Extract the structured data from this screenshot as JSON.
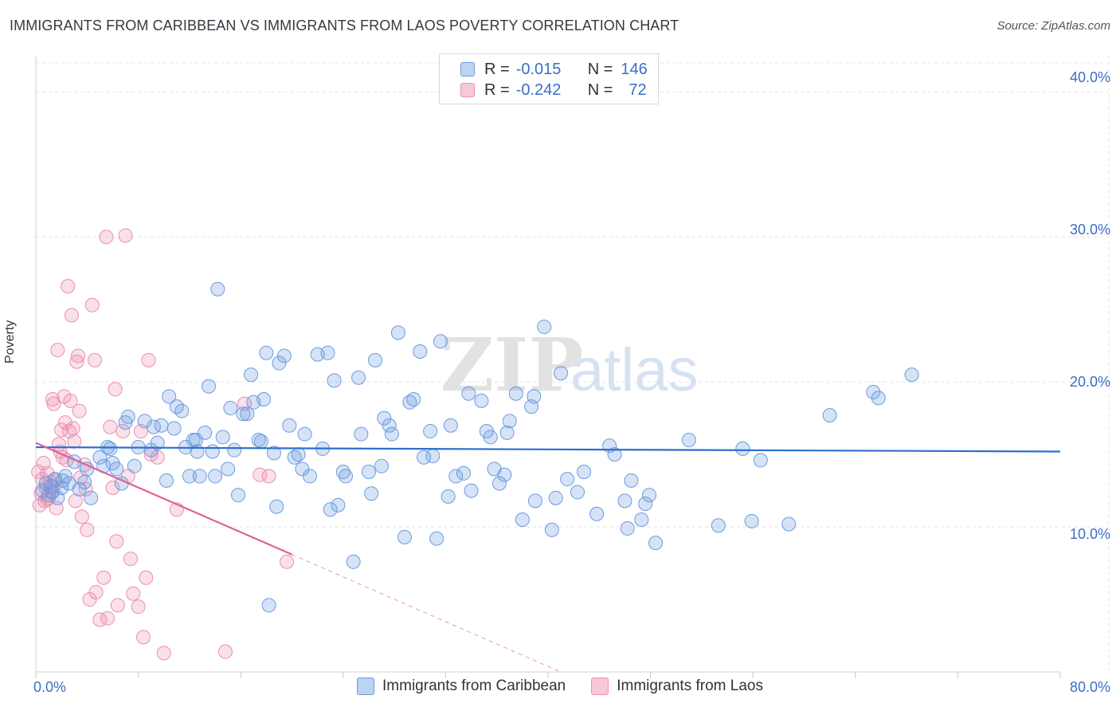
{
  "title": "IMMIGRANTS FROM CARIBBEAN VS IMMIGRANTS FROM LAOS POVERTY CORRELATION CHART",
  "source": "Source: ZipAtlas.com",
  "watermark": {
    "bold": "ZIP",
    "light": "atlas"
  },
  "legend": {
    "rows": [
      {
        "r_label": "R =",
        "r_value": "-0.015",
        "n_label": "N =",
        "n_value": "146"
      },
      {
        "r_label": "R =",
        "r_value": "-0.242",
        "n_label": "N =",
        "n_value": "72"
      }
    ]
  },
  "bottom_legend": [
    "Immigrants from Caribbean",
    "Immigrants from Laos"
  ],
  "x_tick_labels": {
    "min": "0.0%",
    "max": "80.0%"
  },
  "y_tick_labels": [
    "10.0%",
    "20.0%",
    "30.0%",
    "40.0%"
  ],
  "chart_data": {
    "type": "scatter",
    "xlabel": "",
    "ylabel": "Poverty",
    "xlim": [
      0,
      80
    ],
    "ylim": [
      0,
      42
    ],
    "yticks": [
      10,
      20,
      30,
      40
    ],
    "grid": true,
    "colors": {
      "Immigrants from Caribbean": "#6b9be0",
      "Immigrants from Laos": "#ec8eb0",
      "caribbean_line": "#2b6fd1",
      "laos_line": "#e06096"
    },
    "series": [
      {
        "name": "Immigrants from Caribbean",
        "r": -0.015,
        "n": 146,
        "trend": {
          "x0": 0,
          "y0": 15.5,
          "x1": 80,
          "y1": 15.2
        },
        "points": [
          [
            0.5,
            12.5
          ],
          [
            0.8,
            13.0
          ],
          [
            1.0,
            12.2
          ],
          [
            1.2,
            12.8
          ],
          [
            1.5,
            13.3
          ],
          [
            1.7,
            12.0
          ],
          [
            2.0,
            12.7
          ],
          [
            2.3,
            13.5
          ],
          [
            2.6,
            13.0
          ],
          [
            3.0,
            14.5
          ],
          [
            3.4,
            12.6
          ],
          [
            3.8,
            13.1
          ],
          [
            4.0,
            14.0
          ],
          [
            4.3,
            12.0
          ],
          [
            5.0,
            14.8
          ],
          [
            5.3,
            14.2
          ],
          [
            5.6,
            15.5
          ],
          [
            6.0,
            14.4
          ],
          [
            6.3,
            14.0
          ],
          [
            6.7,
            13.0
          ],
          [
            7.0,
            17.2
          ],
          [
            7.2,
            17.6
          ],
          [
            7.7,
            14.2
          ],
          [
            8.0,
            15.5
          ],
          [
            8.5,
            17.3
          ],
          [
            9.0,
            15.3
          ],
          [
            9.5,
            15.8
          ],
          [
            9.8,
            17.0
          ],
          [
            10.2,
            13.2
          ],
          [
            10.4,
            19.0
          ],
          [
            10.8,
            16.8
          ],
          [
            11.0,
            18.3
          ],
          [
            11.4,
            18.0
          ],
          [
            11.7,
            15.5
          ],
          [
            12.0,
            13.5
          ],
          [
            12.3,
            16.0
          ],
          [
            12.6,
            15.2
          ],
          [
            12.8,
            13.5
          ],
          [
            13.2,
            16.5
          ],
          [
            13.5,
            19.7
          ],
          [
            13.8,
            15.2
          ],
          [
            14.0,
            13.5
          ],
          [
            14.2,
            26.4
          ],
          [
            14.6,
            16.2
          ],
          [
            15.0,
            14.0
          ],
          [
            15.2,
            18.2
          ],
          [
            15.5,
            15.3
          ],
          [
            15.8,
            12.2
          ],
          [
            16.2,
            17.8
          ],
          [
            16.5,
            17.8
          ],
          [
            16.8,
            20.5
          ],
          [
            17.0,
            18.6
          ],
          [
            17.4,
            16.0
          ],
          [
            17.6,
            15.9
          ],
          [
            17.8,
            18.8
          ],
          [
            18.0,
            22.0
          ],
          [
            18.2,
            4.6
          ],
          [
            18.6,
            15.1
          ],
          [
            18.8,
            11.4
          ],
          [
            19.0,
            21.3
          ],
          [
            19.4,
            21.8
          ],
          [
            19.8,
            17.0
          ],
          [
            20.2,
            14.8
          ],
          [
            20.5,
            15.0
          ],
          [
            20.8,
            14.0
          ],
          [
            21.0,
            16.4
          ],
          [
            21.4,
            13.5
          ],
          [
            22.0,
            21.9
          ],
          [
            22.4,
            15.4
          ],
          [
            22.8,
            22.0
          ],
          [
            23.0,
            11.2
          ],
          [
            23.3,
            20.1
          ],
          [
            23.6,
            11.5
          ],
          [
            24.0,
            13.8
          ],
          [
            24.2,
            13.5
          ],
          [
            24.8,
            7.6
          ],
          [
            25.2,
            20.3
          ],
          [
            25.4,
            16.4
          ],
          [
            26.0,
            13.8
          ],
          [
            26.2,
            12.3
          ],
          [
            26.5,
            21.5
          ],
          [
            27.0,
            14.2
          ],
          [
            27.2,
            17.5
          ],
          [
            27.6,
            17.0
          ],
          [
            27.8,
            16.4
          ],
          [
            28.3,
            23.4
          ],
          [
            28.8,
            9.3
          ],
          [
            29.2,
            18.6
          ],
          [
            29.5,
            18.8
          ],
          [
            30.0,
            22.1
          ],
          [
            30.3,
            14.8
          ],
          [
            30.8,
            16.6
          ],
          [
            31.0,
            14.9
          ],
          [
            31.3,
            9.2
          ],
          [
            31.6,
            22.8
          ],
          [
            32.2,
            12.1
          ],
          [
            32.4,
            17.0
          ],
          [
            32.8,
            13.5
          ],
          [
            33.4,
            13.7
          ],
          [
            33.8,
            19.2
          ],
          [
            34.0,
            12.5
          ],
          [
            34.8,
            18.7
          ],
          [
            35.2,
            16.6
          ],
          [
            35.5,
            16.2
          ],
          [
            35.8,
            14.0
          ],
          [
            36.2,
            13.0
          ],
          [
            36.6,
            13.6
          ],
          [
            36.8,
            16.5
          ],
          [
            37.0,
            17.3
          ],
          [
            37.5,
            19.2
          ],
          [
            38.0,
            10.5
          ],
          [
            38.7,
            18.3
          ],
          [
            38.9,
            19.0
          ],
          [
            39.0,
            11.8
          ],
          [
            39.7,
            23.8
          ],
          [
            40.3,
            9.8
          ],
          [
            40.6,
            12.0
          ],
          [
            41.0,
            20.6
          ],
          [
            41.5,
            13.3
          ],
          [
            42.3,
            12.4
          ],
          [
            42.8,
            13.8
          ],
          [
            43.8,
            10.9
          ],
          [
            44.8,
            15.6
          ],
          [
            45.2,
            15.0
          ],
          [
            46.0,
            11.8
          ],
          [
            46.2,
            9.9
          ],
          [
            46.5,
            13.2
          ],
          [
            47.3,
            10.5
          ],
          [
            47.6,
            11.6
          ],
          [
            47.9,
            12.2
          ],
          [
            48.4,
            8.9
          ],
          [
            51.0,
            16.0
          ],
          [
            53.3,
            10.1
          ],
          [
            55.2,
            15.4
          ],
          [
            55.9,
            10.4
          ],
          [
            56.6,
            14.6
          ],
          [
            58.8,
            10.2
          ],
          [
            62.0,
            17.7
          ],
          [
            65.4,
            19.3
          ],
          [
            65.8,
            18.9
          ],
          [
            68.4,
            20.5
          ],
          [
            1.3,
            12.4
          ],
          [
            2.1,
            13.2
          ],
          [
            9.2,
            16.9
          ],
          [
            5.8,
            15.4
          ],
          [
            12.5,
            16.0
          ]
        ]
      },
      {
        "name": "Immigrants from Laos",
        "r": -0.242,
        "n": 72,
        "trend_solid": {
          "x0": 0,
          "y0": 15.8,
          "x1": 20,
          "y1": 8.1
        },
        "trend_dashed": {
          "x0": 20,
          "y0": 8.1,
          "x1": 41,
          "y1": 0
        },
        "points": [
          [
            0.2,
            13.8
          ],
          [
            0.3,
            11.5
          ],
          [
            0.4,
            12.3
          ],
          [
            0.5,
            13.3
          ],
          [
            0.6,
            14.4
          ],
          [
            0.7,
            11.8
          ],
          [
            0.8,
            12.7
          ],
          [
            0.9,
            13.7
          ],
          [
            1.0,
            12.0
          ],
          [
            1.1,
            13.1
          ],
          [
            1.2,
            12.4
          ],
          [
            1.3,
            18.8
          ],
          [
            1.4,
            18.5
          ],
          [
            1.5,
            13.2
          ],
          [
            1.6,
            11.3
          ],
          [
            1.7,
            22.2
          ],
          [
            1.8,
            15.7
          ],
          [
            1.9,
            15.2
          ],
          [
            2.0,
            16.7
          ],
          [
            2.1,
            14.8
          ],
          [
            2.2,
            19.0
          ],
          [
            2.3,
            17.2
          ],
          [
            2.5,
            26.6
          ],
          [
            2.6,
            16.6
          ],
          [
            2.7,
            18.7
          ],
          [
            2.8,
            24.6
          ],
          [
            2.9,
            16.8
          ],
          [
            3.0,
            15.9
          ],
          [
            3.1,
            11.8
          ],
          [
            3.2,
            21.4
          ],
          [
            3.3,
            21.8
          ],
          [
            3.4,
            18.0
          ],
          [
            3.5,
            13.4
          ],
          [
            3.6,
            10.7
          ],
          [
            3.8,
            14.3
          ],
          [
            4.0,
            9.8
          ],
          [
            4.2,
            5.0
          ],
          [
            4.4,
            25.3
          ],
          [
            4.6,
            21.5
          ],
          [
            4.7,
            5.5
          ],
          [
            5.0,
            3.6
          ],
          [
            5.3,
            6.5
          ],
          [
            5.5,
            30.0
          ],
          [
            5.6,
            3.7
          ],
          [
            5.8,
            16.9
          ],
          [
            6.0,
            12.7
          ],
          [
            6.2,
            19.5
          ],
          [
            6.3,
            9.0
          ],
          [
            6.4,
            4.6
          ],
          [
            6.8,
            16.6
          ],
          [
            7.0,
            30.1
          ],
          [
            7.2,
            13.5
          ],
          [
            7.4,
            7.8
          ],
          [
            7.6,
            5.4
          ],
          [
            8.0,
            4.5
          ],
          [
            8.2,
            16.6
          ],
          [
            8.4,
            2.4
          ],
          [
            8.6,
            6.5
          ],
          [
            8.8,
            21.5
          ],
          [
            9.0,
            15.0
          ],
          [
            9.5,
            14.8
          ],
          [
            10.0,
            1.3
          ],
          [
            11.0,
            11.2
          ],
          [
            14.8,
            1.4
          ],
          [
            16.3,
            18.5
          ],
          [
            17.5,
            13.6
          ],
          [
            18.2,
            13.5
          ],
          [
            19.6,
            7.6
          ],
          [
            1.4,
            12.8
          ],
          [
            0.9,
            11.9
          ],
          [
            2.4,
            14.6
          ],
          [
            3.9,
            12.6
          ]
        ]
      }
    ]
  }
}
